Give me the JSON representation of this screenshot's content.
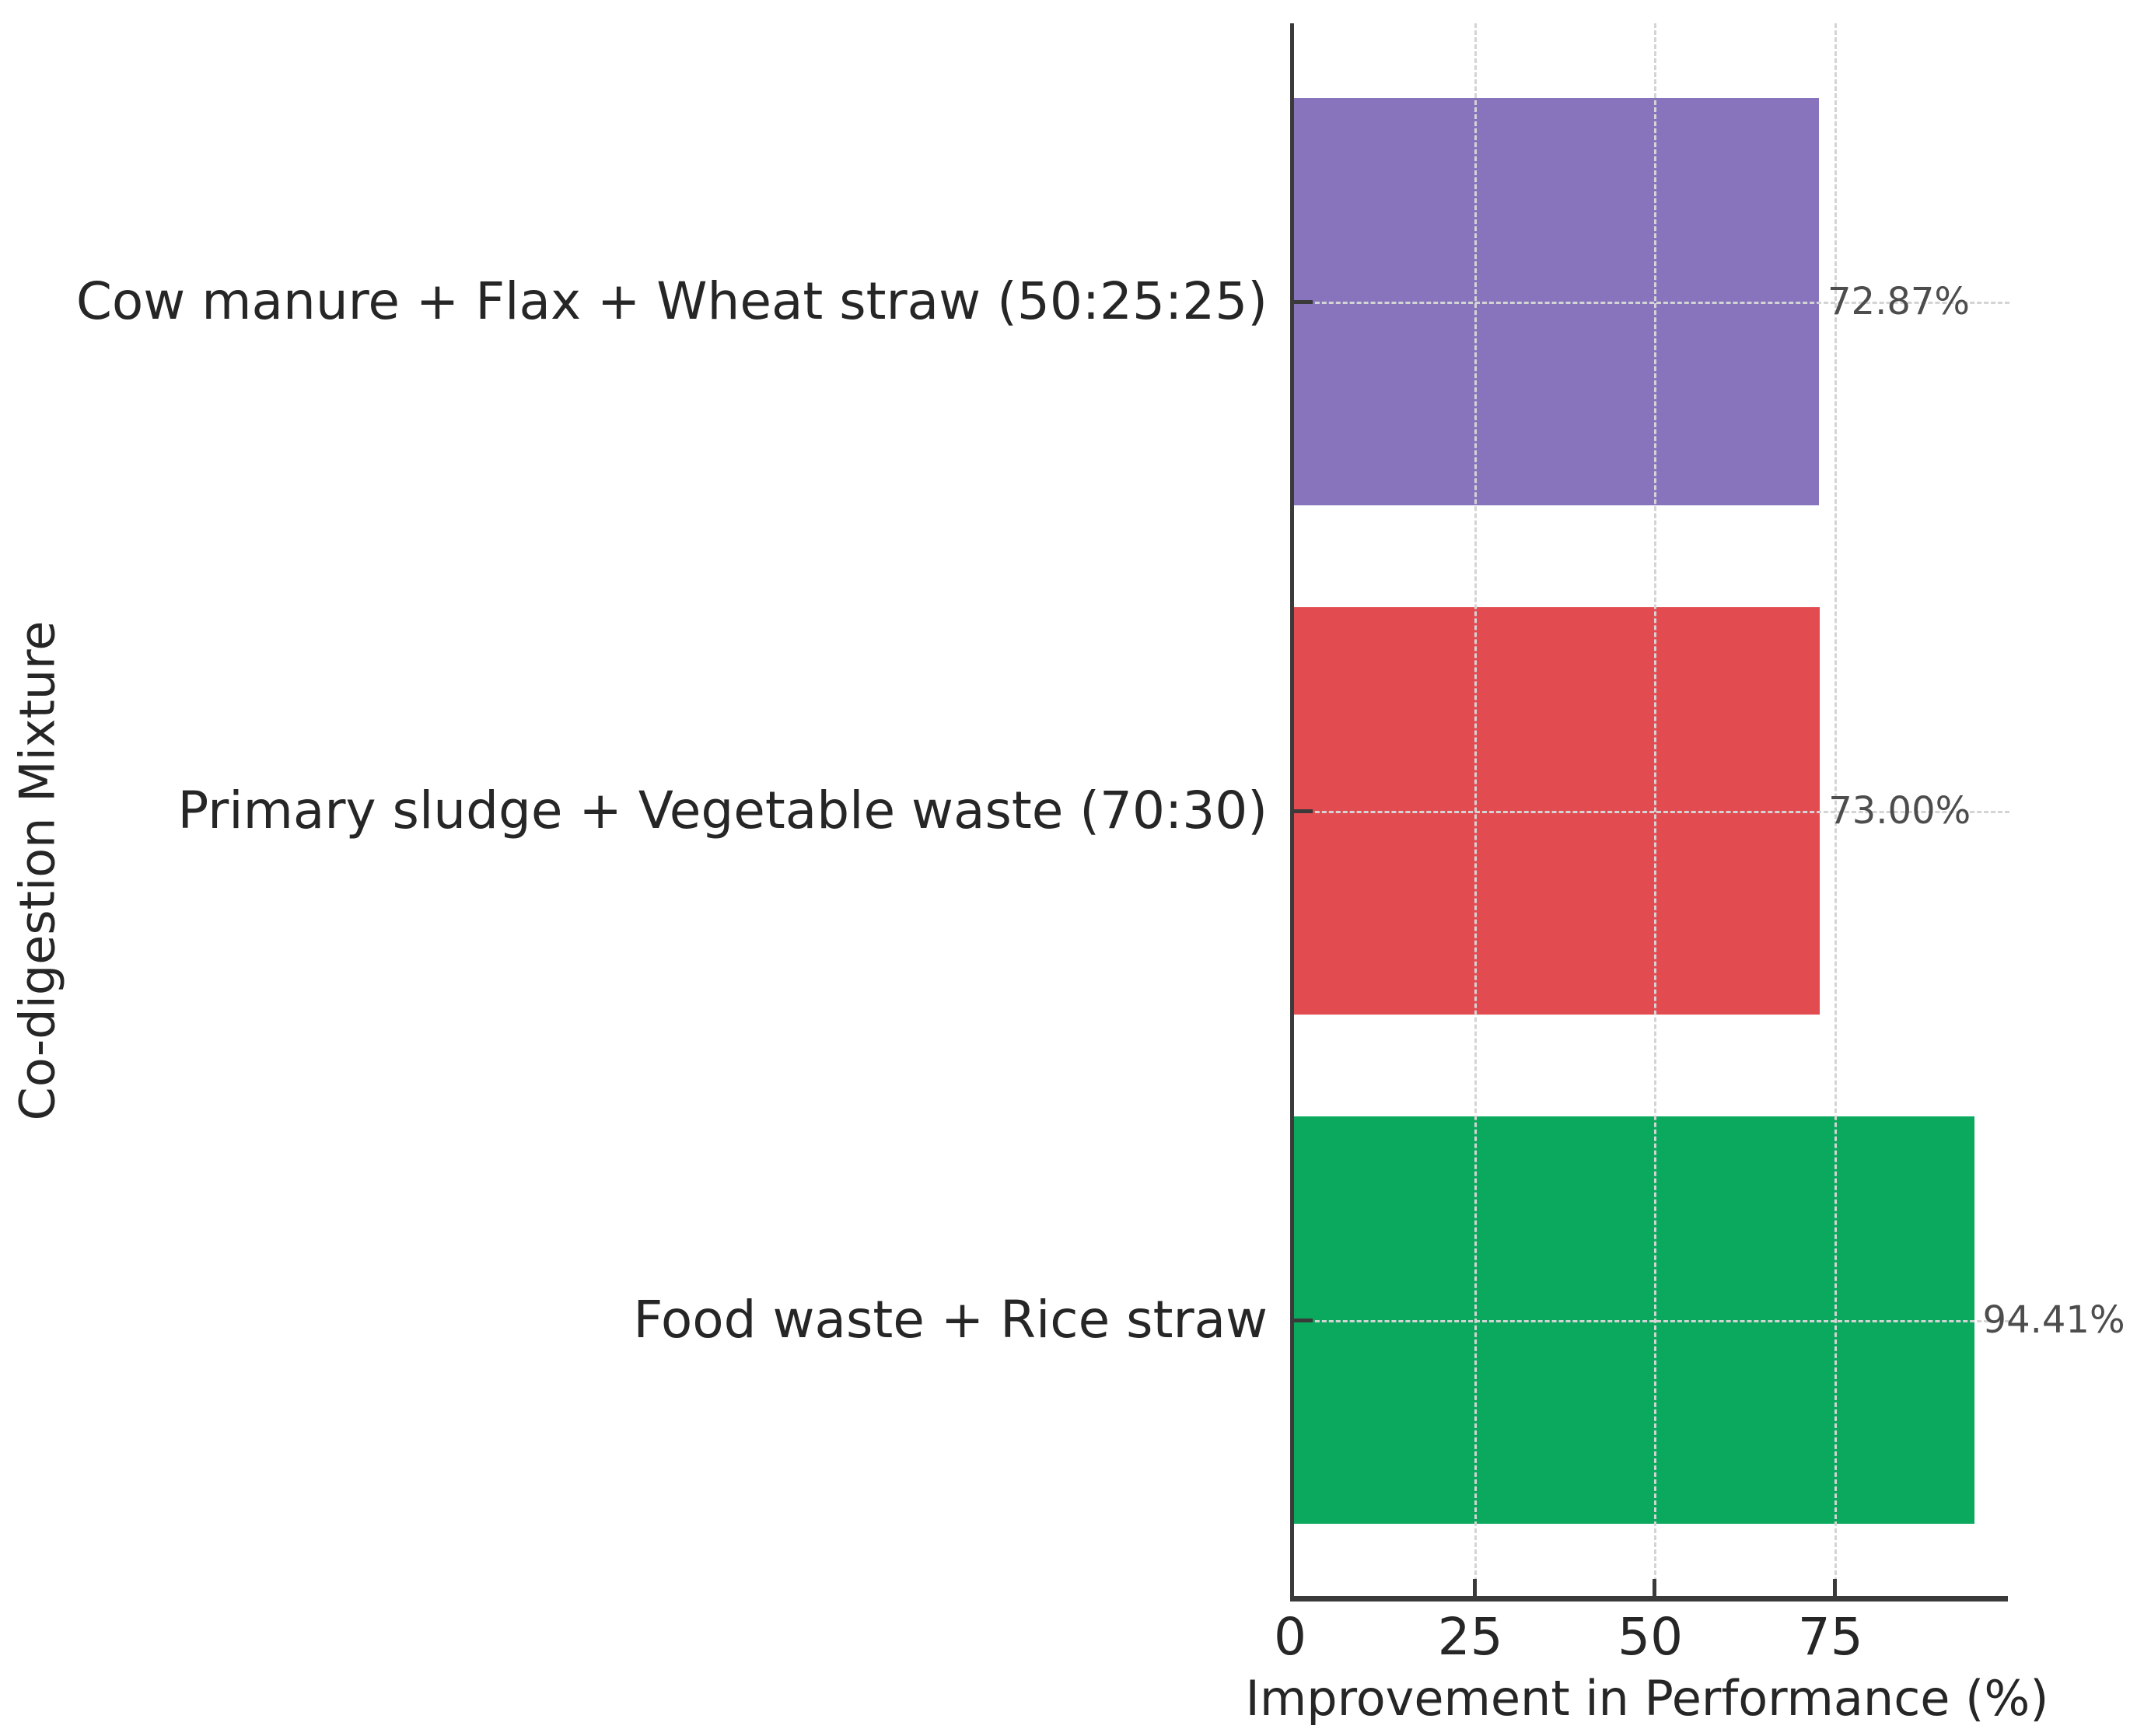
{
  "figure": {
    "xlabel": "Improvement in Performance (%)",
    "ylabel": "Co-digestion Mixture"
  },
  "chart_data": {
    "type": "bar",
    "orientation": "horizontal",
    "title": "",
    "xlabel": "Improvement in Performance (%)",
    "ylabel": "Co-digestion Mixture",
    "categories": [
      "Cow manure + Flax + Wheat straw (50:25:25)",
      "Primary sludge + Vegetable waste (70:30)",
      "Food waste + Rice straw"
    ],
    "values": [
      72.87,
      73.0,
      94.41
    ],
    "value_labels": [
      "72.87%",
      "73.00%",
      "94.41%"
    ],
    "bar_colors": [
      "#8874bc",
      "#e24b50",
      "#0aa95e"
    ],
    "xticks": [
      0,
      25,
      50,
      75
    ],
    "xtick_labels": [
      "0",
      "25",
      "50",
      "75"
    ],
    "xlim": [
      0,
      99.1
    ],
    "grid": {
      "style": "dashed",
      "color": "#d4d4d4",
      "vertical_at": [
        25,
        50,
        75
      ],
      "horizontal_at_bar_centers": true
    },
    "axis_color": "#3a3a3a",
    "label_color": "#262626",
    "value_label_color": "#4d4d4d",
    "legend": null
  }
}
